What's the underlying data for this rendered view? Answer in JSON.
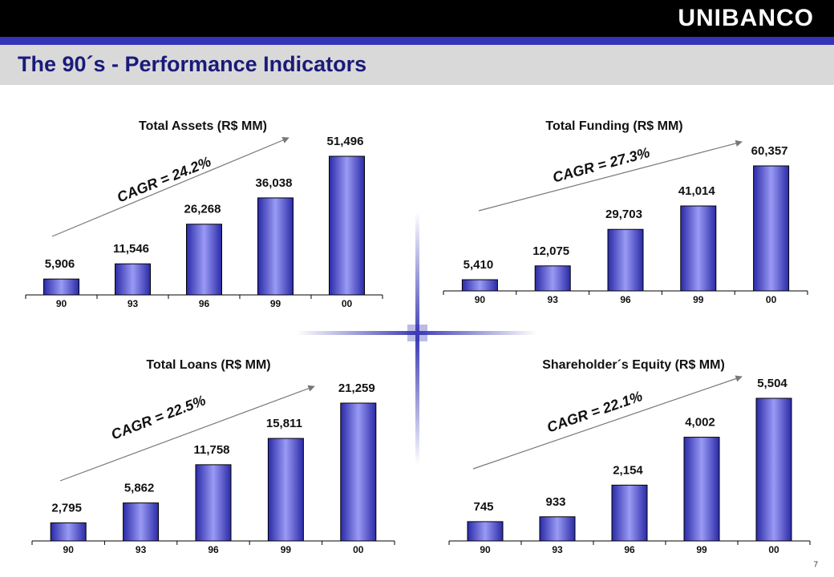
{
  "header": {
    "logo": "UNIBANCO",
    "title": "The 90´s - Performance Indicators",
    "page": "7"
  },
  "chart_data": [
    {
      "type": "bar",
      "title": "Total Assets (R$ MM)",
      "annotation": "CAGR = 24.2%",
      "color": "#2a2aa8",
      "categories": [
        "90",
        "93",
        "96",
        "99",
        "00"
      ],
      "values": [
        5906,
        11546,
        26268,
        36038,
        51496
      ],
      "value_labels": [
        "5,906",
        "11,546",
        "26,268",
        "36,038",
        "51,496"
      ]
    },
    {
      "type": "bar",
      "title": "Total Funding (R$ MM)",
      "annotation": "CAGR = 27.3%",
      "color": "#2a2aa8",
      "categories": [
        "90",
        "93",
        "96",
        "99",
        "00"
      ],
      "values": [
        5410,
        12075,
        29703,
        41014,
        60357
      ],
      "value_labels": [
        "5,410",
        "12,075",
        "29,703",
        "41,014",
        "60,357"
      ]
    },
    {
      "type": "bar",
      "title": "Total Loans (R$ MM)",
      "annotation": "CAGR = 22.5%",
      "color": "#2a2aa8",
      "categories": [
        "90",
        "93",
        "96",
        "99",
        "00"
      ],
      "values": [
        2795,
        5862,
        11758,
        15811,
        21259
      ],
      "value_labels": [
        "2,795",
        "5,862",
        "11,758",
        "15,811",
        "21,259"
      ]
    },
    {
      "type": "bar",
      "title": "Shareholder´s Equity (R$ MM)",
      "annotation": "CAGR = 22.1%",
      "color": "#2a2aa8",
      "categories": [
        "90",
        "93",
        "96",
        "99",
        "00"
      ],
      "values": [
        745,
        933,
        2154,
        4002,
        5504
      ],
      "value_labels": [
        "745",
        "933",
        "2,154",
        "4,002",
        "5,504"
      ]
    }
  ]
}
